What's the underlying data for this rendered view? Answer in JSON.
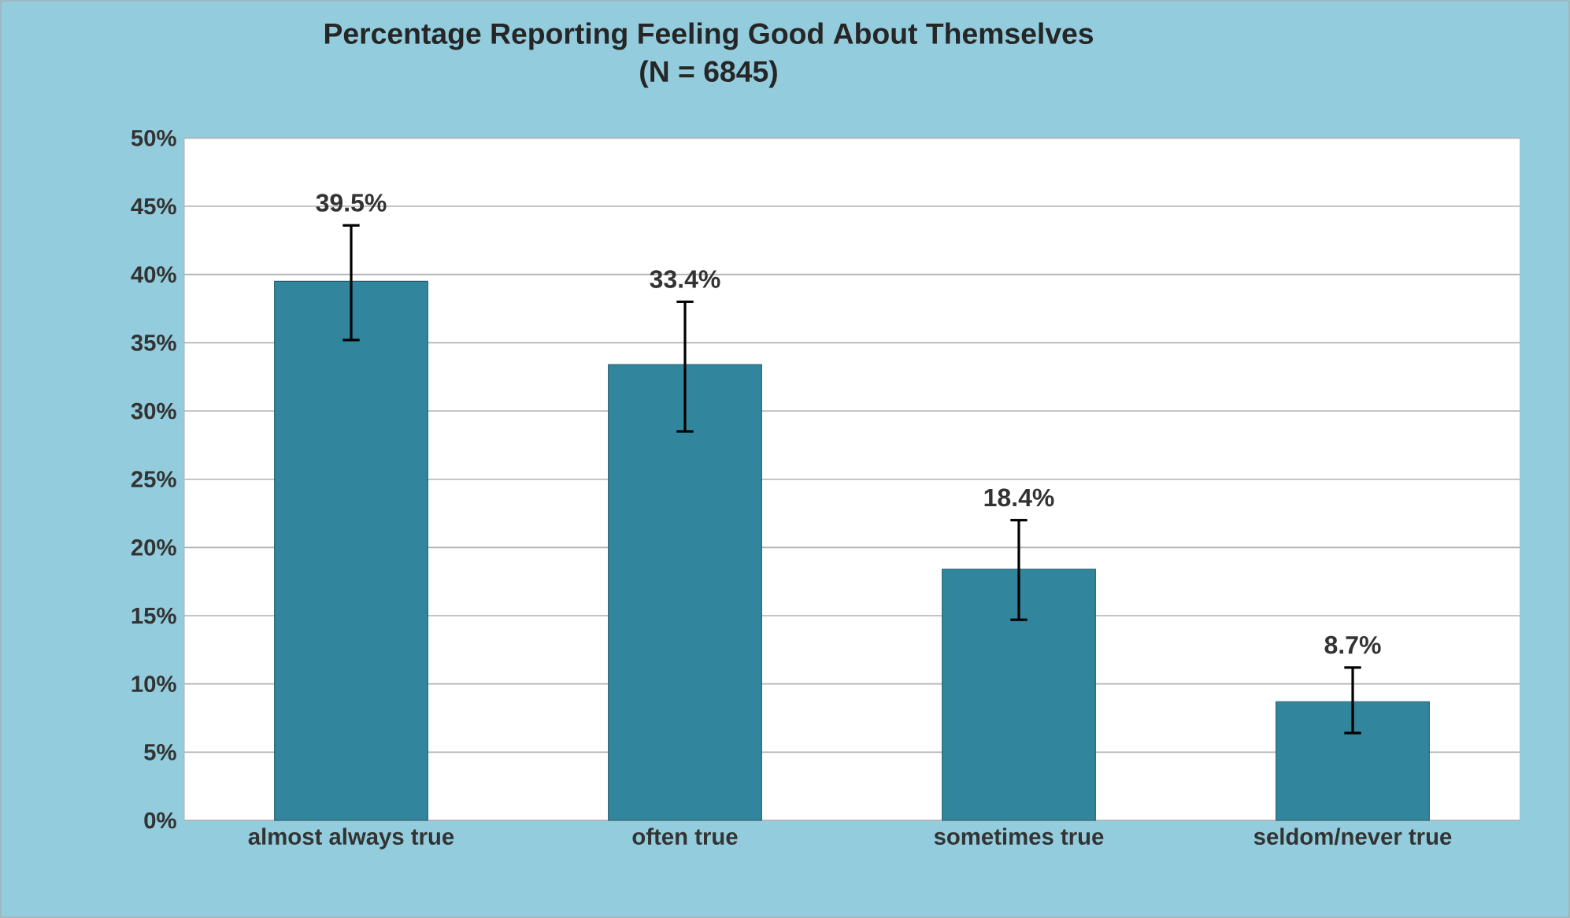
{
  "chart_data": {
    "type": "bar",
    "title": "Percentage Reporting Feeling Good About Themselves",
    "subtitle": "(N = 6845)",
    "categories": [
      "almost always true",
      "often true",
      "sometimes true",
      "seldom/never true"
    ],
    "values": [
      39.5,
      33.4,
      18.4,
      8.7
    ],
    "errors": [
      [
        35.2,
        43.6
      ],
      [
        28.5,
        38.0
      ],
      [
        14.7,
        22.0
      ],
      [
        6.4,
        11.2
      ]
    ],
    "value_labels": [
      "39.5%",
      "33.4%",
      "18.4%",
      "8.7%"
    ],
    "color": "#31869e",
    "ylim": [
      0,
      50
    ],
    "yticks": [
      {
        "value": 0,
        "label": "0%"
      },
      {
        "value": 5,
        "label": "5%"
      },
      {
        "value": 10,
        "label": "10%"
      },
      {
        "value": 15,
        "label": "15%"
      },
      {
        "value": 20,
        "label": "20%"
      },
      {
        "value": 25,
        "label": "25%"
      },
      {
        "value": 30,
        "label": "30%"
      },
      {
        "value": 35,
        "label": "35%"
      },
      {
        "value": 40,
        "label": "40%"
      },
      {
        "value": 45,
        "label": "45%"
      },
      {
        "value": 50,
        "label": "50%"
      }
    ],
    "grid": true
  }
}
